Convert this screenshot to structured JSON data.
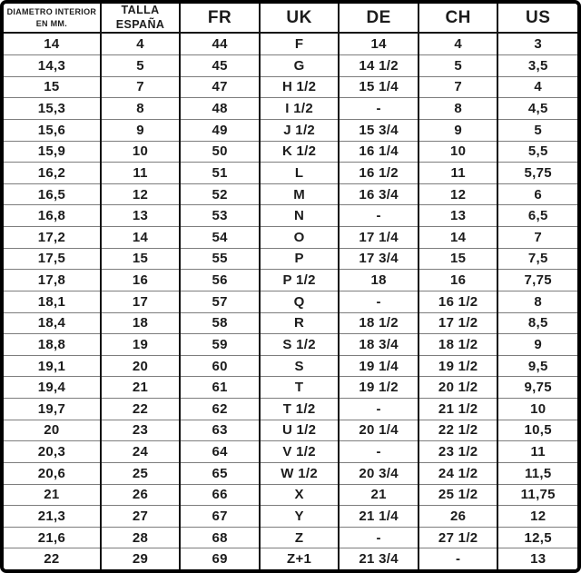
{
  "table": {
    "headers": [
      {
        "name": "diametro-interior-mm",
        "lines": [
          "DIAMETRO INTERIOR",
          "EN MM."
        ]
      },
      {
        "name": "talla-espana",
        "lines": [
          "TALLA",
          "ESPAÑA"
        ]
      },
      {
        "name": "fr",
        "lines": [
          "FR"
        ]
      },
      {
        "name": "uk",
        "lines": [
          "UK"
        ]
      },
      {
        "name": "de",
        "lines": [
          "DE"
        ]
      },
      {
        "name": "ch",
        "lines": [
          "CH"
        ]
      },
      {
        "name": "us",
        "lines": [
          "US"
        ]
      }
    ]
  },
  "chart_data": {
    "type": "table",
    "columns": [
      "DIAMETRO INTERIOR EN MM.",
      "TALLA ESPAÑA",
      "FR",
      "UK",
      "DE",
      "CH",
      "US"
    ],
    "rows": [
      [
        "14",
        "4",
        "44",
        "F",
        "14",
        "4",
        "3"
      ],
      [
        "14,3",
        "5",
        "45",
        "G",
        "14 1/2",
        "5",
        "3,5"
      ],
      [
        "15",
        "7",
        "47",
        "H 1/2",
        "15 1/4",
        "7",
        "4"
      ],
      [
        "15,3",
        "8",
        "48",
        "I 1/2",
        "-",
        "8",
        "4,5"
      ],
      [
        "15,6",
        "9",
        "49",
        "J 1/2",
        "15 3/4",
        "9",
        "5"
      ],
      [
        "15,9",
        "10",
        "50",
        "K 1/2",
        "16 1/4",
        "10",
        "5,5"
      ],
      [
        "16,2",
        "11",
        "51",
        "L",
        "16 1/2",
        "11",
        "5,75"
      ],
      [
        "16,5",
        "12",
        "52",
        "M",
        "16 3/4",
        "12",
        "6"
      ],
      [
        "16,8",
        "13",
        "53",
        "N",
        "-",
        "13",
        "6,5"
      ],
      [
        "17,2",
        "14",
        "54",
        "O",
        "17 1/4",
        "14",
        "7"
      ],
      [
        "17,5",
        "15",
        "55",
        "P",
        "17 3/4",
        "15",
        "7,5"
      ],
      [
        "17,8",
        "16",
        "56",
        "P 1/2",
        "18",
        "16",
        "7,75"
      ],
      [
        "18,1",
        "17",
        "57",
        "Q",
        "-",
        "16 1/2",
        "8"
      ],
      [
        "18,4",
        "18",
        "58",
        "R",
        "18 1/2",
        "17 1/2",
        "8,5"
      ],
      [
        "18,8",
        "19",
        "59",
        "S 1/2",
        "18 3/4",
        "18 1/2",
        "9"
      ],
      [
        "19,1",
        "20",
        "60",
        "S",
        "19 1/4",
        "19 1/2",
        "9,5"
      ],
      [
        "19,4",
        "21",
        "61",
        "T",
        "19 1/2",
        "20 1/2",
        "9,75"
      ],
      [
        "19,7",
        "22",
        "62",
        "T 1/2",
        "-",
        "21 1/2",
        "10"
      ],
      [
        "20",
        "23",
        "63",
        "U 1/2",
        "20 1/4",
        "22 1/2",
        "10,5"
      ],
      [
        "20,3",
        "24",
        "64",
        "V 1/2",
        "-",
        "23 1/2",
        "11"
      ],
      [
        "20,6",
        "25",
        "65",
        "W 1/2",
        "20 3/4",
        "24 1/2",
        "11,5"
      ],
      [
        "21",
        "26",
        "66",
        "X",
        "21",
        "25 1/2",
        "11,75"
      ],
      [
        "21,3",
        "27",
        "67",
        "Y",
        "21 1/4",
        "26",
        "12"
      ],
      [
        "21,6",
        "28",
        "68",
        "Z",
        "-",
        "27 1/2",
        "12,5"
      ],
      [
        "22",
        "29",
        "69",
        "Z+1",
        "21 3/4",
        "-",
        "13"
      ]
    ]
  }
}
